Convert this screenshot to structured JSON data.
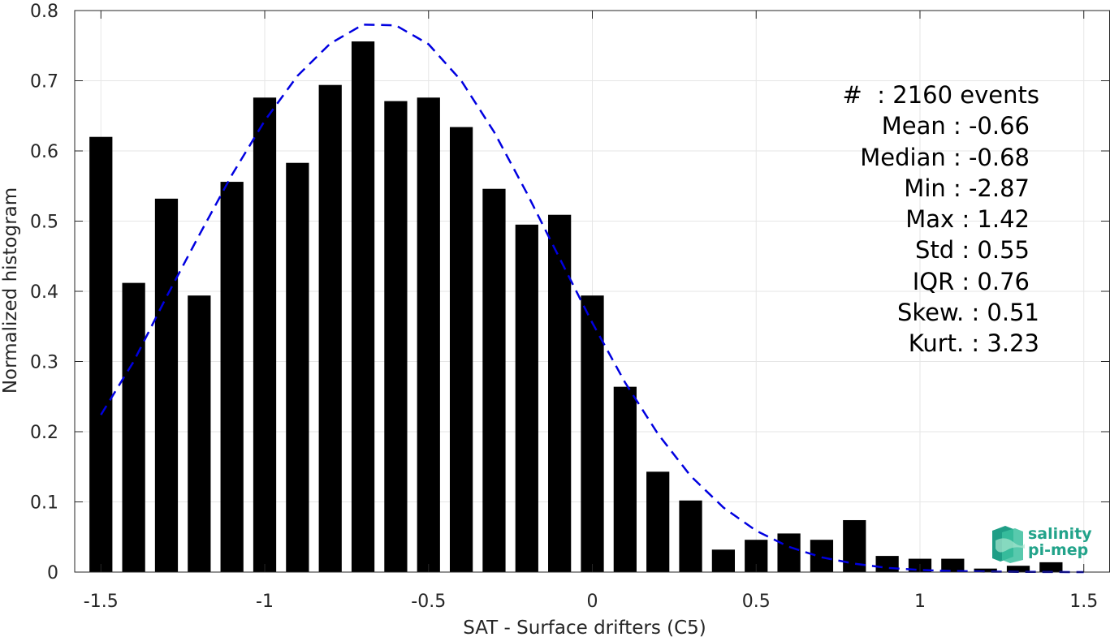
{
  "chart_data": {
    "type": "bar",
    "xlabel": "SAT - Surface drifters (C5)",
    "ylabel": "Normalized histogram",
    "xlim": [
      -1.58,
      1.58
    ],
    "ylim": [
      0,
      0.8
    ],
    "xticks": [
      -1.5,
      -1,
      -0.5,
      0,
      0.5,
      1,
      1.5
    ],
    "xtick_labels": [
      "-1.5",
      "-1",
      "-0.5",
      "0",
      "0.5",
      "1",
      "1.5"
    ],
    "yticks": [
      0,
      0.1,
      0.2,
      0.3,
      0.4,
      0.5,
      0.6,
      0.7,
      0.8
    ],
    "ytick_labels": [
      "0",
      "0.1",
      "0.2",
      "0.3",
      "0.4",
      "0.5",
      "0.6",
      "0.7",
      "0.8"
    ],
    "grid": true,
    "bar_color": "#000000",
    "bar_width": 0.07,
    "bins": [
      -1.5,
      -1.4,
      -1.3,
      -1.2,
      -1.1,
      -1.0,
      -0.9,
      -0.8,
      -0.7,
      -0.6,
      -0.5,
      -0.4,
      -0.3,
      -0.2,
      -0.1,
      0.0,
      0.1,
      0.2,
      0.3,
      0.4,
      0.5,
      0.6,
      0.7,
      0.8,
      0.9,
      1.0,
      1.1,
      1.2,
      1.3,
      1.4
    ],
    "values": [
      0.62,
      0.412,
      0.532,
      0.394,
      0.556,
      0.676,
      0.583,
      0.694,
      0.756,
      0.671,
      0.676,
      0.634,
      0.546,
      0.495,
      0.509,
      0.394,
      0.264,
      0.143,
      0.102,
      0.032,
      0.046,
      0.055,
      0.046,
      0.074,
      0.023,
      0.019,
      0.019,
      0.005,
      0.009,
      0.014
    ],
    "fit_curve": {
      "color": "#0000e0",
      "style": "dashed",
      "x": [
        -1.5,
        -1.4,
        -1.3,
        -1.2,
        -1.1,
        -1.0,
        -0.9,
        -0.8,
        -0.7,
        -0.6,
        -0.5,
        -0.4,
        -0.3,
        -0.2,
        -0.1,
        0.0,
        0.1,
        0.2,
        0.3,
        0.4,
        0.5,
        0.6,
        0.7,
        0.8,
        0.9,
        1.0,
        1.1,
        1.2,
        1.3,
        1.4,
        1.5
      ],
      "y": [
        0.224,
        0.3,
        0.392,
        0.48,
        0.566,
        0.643,
        0.707,
        0.753,
        0.78,
        0.779,
        0.752,
        0.7,
        0.627,
        0.54,
        0.447,
        0.355,
        0.27,
        0.197,
        0.137,
        0.092,
        0.059,
        0.036,
        0.021,
        0.012,
        0.006,
        0.003,
        0.0015,
        0.0007,
        0.0003,
        0.0001,
        5e-05
      ]
    }
  },
  "stats": {
    "count": "#  : 2160 events",
    "mean": "Mean : -0.66",
    "median": "Median : -0.68",
    "min": "Min : -2.87",
    "max": "Max : 1.42",
    "std": "Std : 0.55",
    "iqr": "IQR : 0.76",
    "skew": "Skew. : 0.51",
    "kurt": "Kurt. : 3.23"
  },
  "logo": {
    "line1": "salinity",
    "line2": "pi-mep",
    "color": "#22a38a"
  }
}
